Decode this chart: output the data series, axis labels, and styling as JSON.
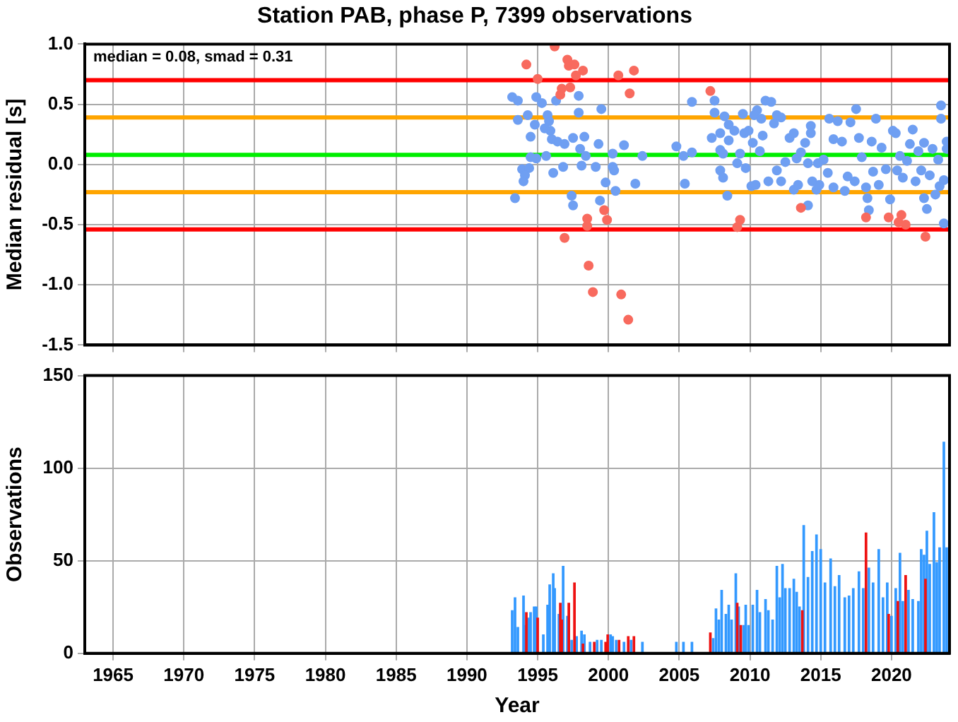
{
  "chart_data": [
    {
      "type": "scatter",
      "title": "Station PAB, phase P, 7399 observations",
      "ylabel": "Median residual [s]",
      "annotations": [
        "median = 0.08, smad = 0.31"
      ],
      "xlim": [
        1963,
        2024.1
      ],
      "xticks": [
        1965,
        1970,
        1975,
        1980,
        1985,
        1990,
        1995,
        2000,
        2005,
        2010,
        2015,
        2020
      ],
      "ylim": [
        -1.5,
        1
      ],
      "yticks": [
        {
          "value": -1.5,
          "label": "-1.5"
        },
        {
          "value": -1,
          "label": "-1.0"
        },
        {
          "value": -0.5,
          "label": "-0.5"
        },
        {
          "value": 0,
          "label": "0.0"
        },
        {
          "value": 0.5,
          "label": "0.5"
        },
        {
          "value": 1,
          "label": "1.0"
        }
      ],
      "tick_labels": "y",
      "grid": true,
      "marker": "circle",
      "ref_lines": [
        {
          "axis": "y",
          "value": 0.7,
          "color": "#ff0000"
        },
        {
          "axis": "y",
          "value": 0.39,
          "color": "#ffa500"
        },
        {
          "axis": "y",
          "value": 0.08,
          "color": "#00ee00"
        },
        {
          "axis": "y",
          "value": -0.23,
          "color": "#ffa500"
        },
        {
          "axis": "y",
          "value": -0.54,
          "color": "#ff0000"
        }
      ],
      "series": [
        {
          "color": "#6f9ff2",
          "x": [
            1993.2,
            1993.6,
            1994.9,
            1995.3,
            1996.3,
            1997.9,
            1999.5,
            2005.9,
            1993.6,
            1994.3,
            1995.7,
            1997.9,
            1994.8,
            1995.8,
            1995.5,
            1995.9,
            1994.5,
            1996.0,
            1996.4,
            1996.9,
            1997.5,
            1998.3,
            1999.3,
            2001.1,
            2004.8,
            1998.0,
            1994.5,
            1994.9,
            1995.6,
            1998.4,
            2000.3,
            2002.4,
            2005.3,
            2005.9,
            1993.9,
            1994.4,
            1994.1,
            1994.0,
            1996.1,
            1996.8,
            1998.1,
            1999.1,
            2000.3,
            2000.4,
            1999.8,
            2000.5,
            2001.9,
            2005.4,
            1993.4,
            1997.4,
            1997.5,
            1999.4,
            2007.5,
            2007.5,
            2008.2,
            2008.5,
            2007.3,
            2007.9,
            2007.9,
            2008.1,
            2008.5,
            2008.9,
            2007.9,
            2008.1,
            2008.4,
            2009.1,
            2009.5,
            2009.6,
            2009.7,
            2009.3,
            2009.9,
            2010.2,
            2010.5,
            2010.3,
            2010.1,
            2010.4,
            2010.8,
            2010.9,
            2010.7,
            2011.1,
            2011.5,
            2011.3,
            2011.9,
            2012.2,
            2011.7,
            2011.9,
            2012.2,
            2012.5,
            2012.8,
            2013.1,
            2013.3,
            2013.1,
            2013.4,
            2013.6,
            2014.1,
            2014.3,
            2014.3,
            2013.9,
            2014.1,
            2014.4,
            2014.7,
            2014.9,
            2014.8,
            2015.2,
            2015.6,
            2015.5,
            2015.9,
            2015.9,
            2016.2,
            2016.5,
            2016.7,
            2016.9,
            2017.1,
            2017.5,
            2017.4,
            2017.7,
            2017.9,
            2018.2,
            2018.4,
            2018.3,
            2018.6,
            2018.9,
            2018.7,
            2019.1,
            2019.3,
            2019.6,
            2019.9,
            2020.1,
            2020.3,
            2020.4,
            2020.6,
            2020.8,
            2021.1,
            2021.3,
            2021.5,
            2021.7,
            2021.9,
            2022.1,
            2022.3,
            2022.3,
            2022.5,
            2022.7,
            2022.9,
            2023.1,
            2023.3,
            2023.4,
            2023.5,
            2023.5,
            2023.7,
            2023.7,
            2023.9,
            2023.9
          ],
          "values": [
            0.56,
            0.53,
            0.56,
            0.51,
            0.53,
            0.57,
            0.46,
            0.52,
            0.37,
            0.41,
            0.41,
            0.43,
            0.33,
            0.36,
            0.3,
            0.28,
            0.23,
            0.21,
            0.19,
            0.17,
            0.22,
            0.23,
            0.17,
            0.16,
            0.15,
            0.13,
            0.06,
            0.05,
            0.07,
            0.07,
            0.09,
            0.07,
            0.07,
            0.1,
            -0.04,
            -0.03,
            -0.09,
            -0.14,
            -0.07,
            -0.02,
            -0.01,
            -0.02,
            -0.02,
            -0.05,
            -0.15,
            -0.22,
            -0.16,
            -0.16,
            -0.28,
            -0.26,
            -0.34,
            -0.3,
            0.53,
            0.43,
            0.4,
            0.33,
            0.22,
            0.26,
            0.12,
            0.09,
            0.2,
            0.28,
            -0.05,
            -0.11,
            -0.26,
            0.01,
            0.42,
            0.26,
            -0.03,
            0.09,
            0.28,
            0.18,
            0.45,
            0.41,
            -0.18,
            -0.17,
            0.38,
            0.24,
            0.11,
            0.53,
            0.52,
            -0.14,
            0.41,
            0.39,
            0.34,
            -0.05,
            -0.14,
            0.02,
            0.22,
            0.26,
            0.05,
            -0.21,
            -0.17,
            0.1,
            -0.34,
            0.32,
            0.26,
            0.18,
            0.01,
            -0.14,
            -0.21,
            -0.17,
            0.01,
            0.04,
            0.38,
            -0.07,
            -0.19,
            0.21,
            0.36,
            0.19,
            -0.22,
            -0.1,
            0.35,
            0.46,
            -0.14,
            0.22,
            0.06,
            -0.19,
            -0.38,
            -0.28,
            0.19,
            0.38,
            -0.06,
            -0.17,
            0.14,
            -0.04,
            -0.29,
            0.28,
            0.26,
            -0.05,
            0.07,
            -0.11,
            0.03,
            0.17,
            0.29,
            -0.14,
            0.11,
            -0.05,
            -0.28,
            0.18,
            -0.37,
            -0.09,
            0.13,
            -0.25,
            0.04,
            -0.18,
            0.49,
            0.38,
            -0.49,
            -0.13,
            0.13,
            0.19
          ]
        },
        {
          "color": "#f86a5e",
          "x": [
            1996.2,
            1994.2,
            1997.1,
            1997.2,
            1997.6,
            1998.2,
            1997.7,
            1995.0,
            2000.7,
            2001.8,
            2001.5,
            1997.3,
            1996.7,
            1996.6,
            1998.5,
            1998.5,
            1999.7,
            1999.9,
            1996.9,
            1998.6,
            1998.9,
            2000.9,
            2001.4,
            2007.2,
            2009.3,
            2009.1,
            2013.6,
            2018.2,
            2019.8,
            2020.7,
            2020.5,
            2021.0,
            2022.4
          ],
          "values": [
            0.98,
            0.83,
            0.87,
            0.82,
            0.83,
            0.78,
            0.74,
            0.71,
            0.74,
            0.78,
            0.59,
            0.64,
            0.63,
            0.58,
            -0.45,
            -0.51,
            -0.38,
            -0.46,
            -0.61,
            -0.84,
            -1.06,
            -1.08,
            -1.29,
            0.61,
            -0.46,
            -0.52,
            -0.36,
            -0.44,
            -0.44,
            -0.42,
            -0.48,
            -0.5,
            -0.6
          ]
        }
      ]
    },
    {
      "type": "bar",
      "xlabel": "Year",
      "ylabel": "Observations",
      "xlim": [
        1963,
        2024.1
      ],
      "xticks": [
        1965,
        1970,
        1975,
        1980,
        1985,
        1990,
        1995,
        2000,
        2005,
        2010,
        2015,
        2020
      ],
      "ylim": [
        0,
        150
      ],
      "yticks": [
        0,
        50,
        100,
        150
      ],
      "grid": true,
      "series": [
        {
          "color": "#3399ff",
          "x": [
            1993.2,
            1993.4,
            1993.6,
            1994.0,
            1994.05,
            1994.35,
            1994.5,
            1994.75,
            1994.9,
            1995.4,
            1995.7,
            1995.85,
            1996.1,
            1996.2,
            1996.5,
            1996.8,
            1997.1,
            1997.4,
            1997.75,
            1998.1,
            1998.3,
            1998.7,
            1999.2,
            1999.5,
            2000.15,
            2000.3,
            2000.55,
            2001.1,
            2001.6,
            2002.4,
            2004.8,
            2005.3,
            2005.9,
            2007.4,
            2007.6,
            2007.8,
            2008.0,
            2008.3,
            2008.5,
            2008.7,
            2009.0,
            2009.2,
            2009.55,
            2009.7,
            2009.9,
            2010.2,
            2010.5,
            2010.7,
            2011.1,
            2011.3,
            2011.6,
            2011.9,
            2012.1,
            2012.3,
            2012.5,
            2012.8,
            2013.1,
            2013.3,
            2013.5,
            2013.8,
            2014.1,
            2014.4,
            2014.7,
            2015.0,
            2015.3,
            2015.7,
            2016.0,
            2016.3,
            2016.7,
            2017.0,
            2017.3,
            2017.7,
            2018.0,
            2018.4,
            2018.7,
            2019.1,
            2019.4,
            2019.7,
            2020.0,
            2020.3,
            2020.6,
            2020.8,
            2021.2,
            2021.5,
            2021.9,
            2022.1,
            2022.3,
            2022.5,
            2022.7,
            2023.0,
            2023.2,
            2023.4,
            2023.7,
            2023.9
          ],
          "values": [
            23,
            30,
            14,
            31,
            15,
            19,
            22,
            25,
            25,
            10,
            26,
            37,
            43,
            35,
            21,
            47,
            20,
            7,
            9,
            12,
            10,
            6,
            7,
            7,
            10,
            9,
            7,
            6,
            7,
            6,
            6,
            6,
            6,
            8,
            24,
            18,
            34,
            21,
            26,
            18,
            43,
            25,
            15,
            26,
            15,
            26,
            34,
            22,
            29,
            23,
            18,
            47,
            30,
            48,
            35,
            35,
            40,
            33,
            25,
            69,
            41,
            55,
            64,
            56,
            38,
            51,
            36,
            42,
            30,
            31,
            35,
            44,
            35,
            46,
            38,
            56,
            30,
            38,
            20,
            35,
            54,
            28,
            34,
            29,
            28,
            56,
            53,
            66,
            48,
            76,
            49,
            57,
            114,
            57
          ]
        },
        {
          "color": "#ee1111",
          "x": [
            1994.2,
            1995.0,
            1996.6,
            1996.7,
            1997.2,
            1997.6,
            1998.2,
            1999.0,
            1999.8,
            1999.95,
            2000.75,
            2001.4,
            2001.8,
            2007.2,
            2009.1,
            2009.35,
            2013.7,
            2018.2,
            2019.8,
            2020.45,
            2021.0,
            2022.4
          ],
          "values": [
            22,
            19,
            27,
            18,
            27,
            38,
            5,
            6,
            6,
            10,
            7,
            9,
            9,
            11,
            27,
            15,
            23,
            65,
            21,
            28,
            42,
            40
          ]
        }
      ]
    }
  ]
}
